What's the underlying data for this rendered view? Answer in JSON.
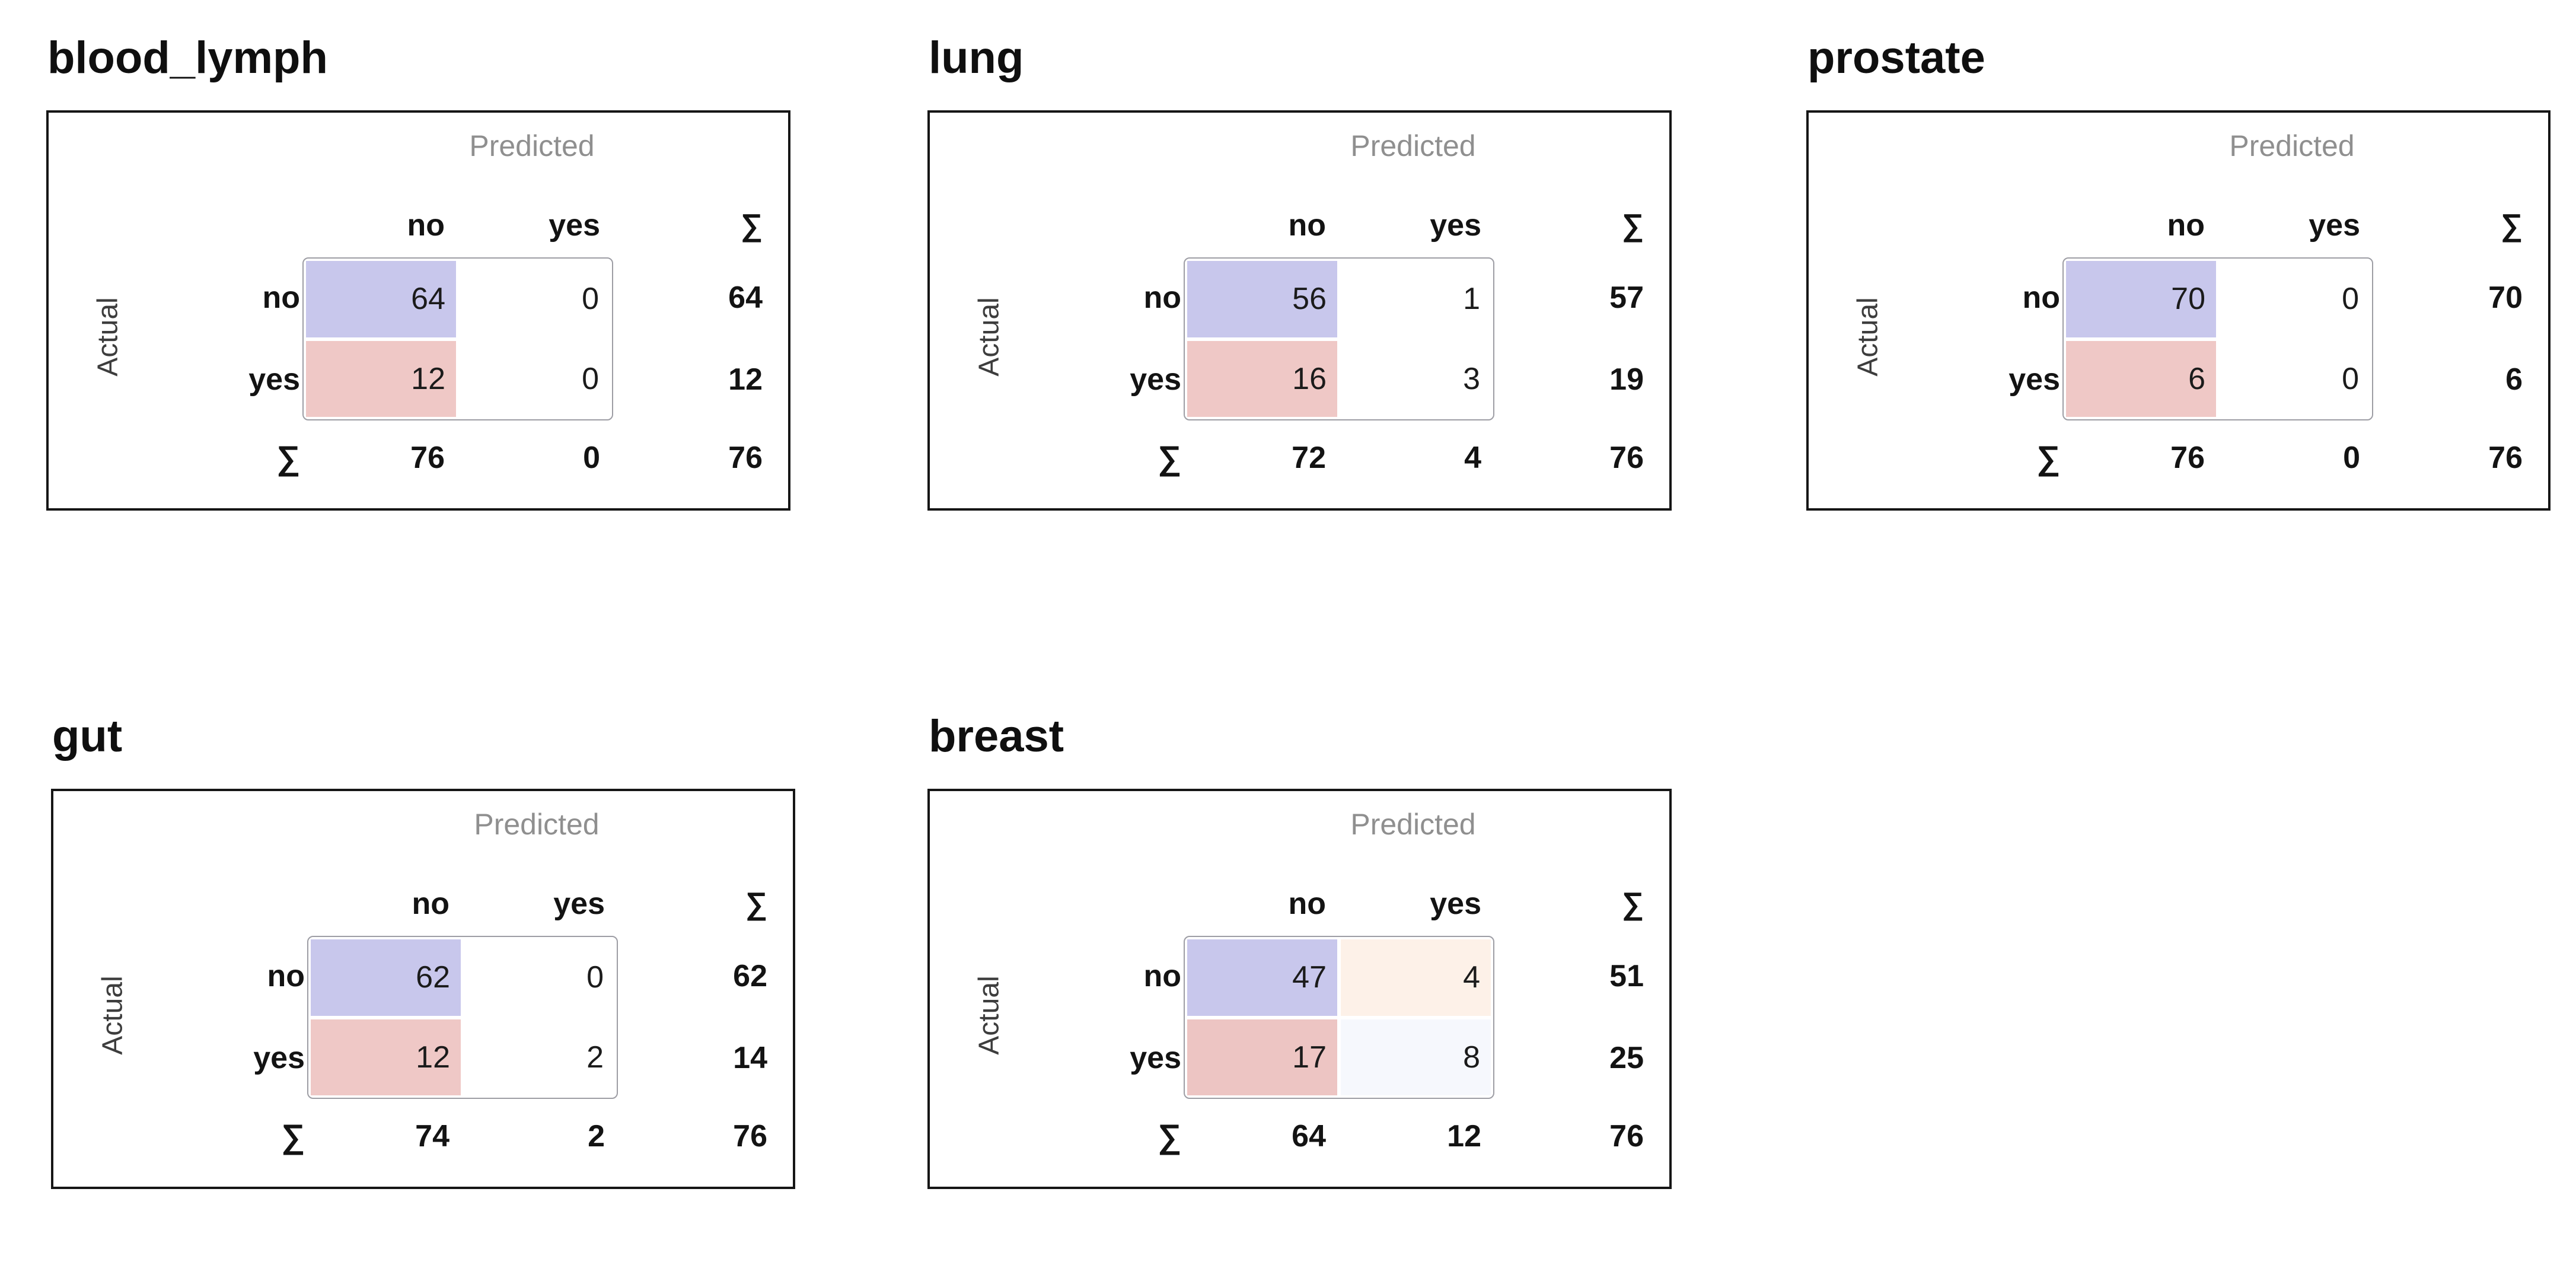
{
  "labels": {
    "predicted": "Predicted",
    "actual": "Actual",
    "sum": "∑",
    "category_no": "no",
    "category_yes": "yes"
  },
  "colors": {
    "cell_blue": "#c8c7ec",
    "cell_pink": "#efc8c6",
    "cell_white": "#ffffff",
    "cell_peach_light": "#fdf1e8",
    "cell_blue_light": "#f6f8fd",
    "predicted_label_gray": "#8f8f8f",
    "actual_label_gray": "#3d3d3d",
    "panel_border": "#161616",
    "matrix_border": "#9d9da4"
  },
  "panels": [
    {
      "title": "blood_lymph",
      "col_headers": [
        "no",
        "yes"
      ],
      "rows": [
        {
          "label": "no",
          "cells": [
            {
              "value": "64",
              "bg": "#c8c7ec"
            },
            {
              "value": "0",
              "bg": "#ffffff"
            }
          ],
          "sum": "64"
        },
        {
          "label": "yes",
          "cells": [
            {
              "value": "12",
              "bg": "#efc8c6"
            },
            {
              "value": "0",
              "bg": "#ffffff"
            }
          ],
          "sum": "12"
        }
      ],
      "col_sums": [
        "76",
        "0"
      ],
      "total": "76"
    },
    {
      "title": "lung",
      "col_headers": [
        "no",
        "yes"
      ],
      "rows": [
        {
          "label": "no",
          "cells": [
            {
              "value": "56",
              "bg": "#c8c7ec"
            },
            {
              "value": "1",
              "bg": "#ffffff"
            }
          ],
          "sum": "57"
        },
        {
          "label": "yes",
          "cells": [
            {
              "value": "16",
              "bg": "#efc8c6"
            },
            {
              "value": "3",
              "bg": "#ffffff"
            }
          ],
          "sum": "19"
        }
      ],
      "col_sums": [
        "72",
        "4"
      ],
      "total": "76"
    },
    {
      "title": "prostate",
      "col_headers": [
        "no",
        "yes"
      ],
      "rows": [
        {
          "label": "no",
          "cells": [
            {
              "value": "70",
              "bg": "#c8c7ec"
            },
            {
              "value": "0",
              "bg": "#ffffff"
            }
          ],
          "sum": "70"
        },
        {
          "label": "yes",
          "cells": [
            {
              "value": "6",
              "bg": "#efc8c6"
            },
            {
              "value": "0",
              "bg": "#ffffff"
            }
          ],
          "sum": "6"
        }
      ],
      "col_sums": [
        "76",
        "0"
      ],
      "total": "76"
    },
    {
      "title": "gut",
      "col_headers": [
        "no",
        "yes"
      ],
      "rows": [
        {
          "label": "no",
          "cells": [
            {
              "value": "62",
              "bg": "#c8c7ec"
            },
            {
              "value": "0",
              "bg": "#ffffff"
            }
          ],
          "sum": "62"
        },
        {
          "label": "yes",
          "cells": [
            {
              "value": "12",
              "bg": "#efc8c6"
            },
            {
              "value": "2",
              "bg": "#ffffff"
            }
          ],
          "sum": "14"
        }
      ],
      "col_sums": [
        "74",
        "2"
      ],
      "total": "76"
    },
    {
      "title": "breast",
      "col_headers": [
        "no",
        "yes"
      ],
      "rows": [
        {
          "label": "no",
          "cells": [
            {
              "value": "47",
              "bg": "#c8c7ec"
            },
            {
              "value": "4",
              "bg": "#fdf1e8"
            }
          ],
          "sum": "51"
        },
        {
          "label": "yes",
          "cells": [
            {
              "value": "17",
              "bg": "#edc5c3"
            },
            {
              "value": "8",
              "bg": "#f6f8fd"
            }
          ],
          "sum": "25"
        }
      ],
      "col_sums": [
        "64",
        "12"
      ],
      "total": "76"
    }
  ],
  "chart_data": [
    {
      "type": "heatmap",
      "title": "blood_lymph",
      "xlabel": "Predicted",
      "ylabel": "Actual",
      "x_categories": [
        "no",
        "yes"
      ],
      "y_categories": [
        "no",
        "yes"
      ],
      "matrix": [
        [
          64,
          0
        ],
        [
          12,
          0
        ]
      ],
      "row_sums": [
        64,
        12
      ],
      "col_sums": [
        76,
        0
      ],
      "total": 76
    },
    {
      "type": "heatmap",
      "title": "lung",
      "xlabel": "Predicted",
      "ylabel": "Actual",
      "x_categories": [
        "no",
        "yes"
      ],
      "y_categories": [
        "no",
        "yes"
      ],
      "matrix": [
        [
          56,
          1
        ],
        [
          16,
          3
        ]
      ],
      "row_sums": [
        57,
        19
      ],
      "col_sums": [
        72,
        4
      ],
      "total": 76
    },
    {
      "type": "heatmap",
      "title": "prostate",
      "xlabel": "Predicted",
      "ylabel": "Actual",
      "x_categories": [
        "no",
        "yes"
      ],
      "y_categories": [
        "no",
        "yes"
      ],
      "matrix": [
        [
          70,
          0
        ],
        [
          6,
          0
        ]
      ],
      "row_sums": [
        70,
        6
      ],
      "col_sums": [
        76,
        0
      ],
      "total": 76
    },
    {
      "type": "heatmap",
      "title": "gut",
      "xlabel": "Predicted",
      "ylabel": "Actual",
      "x_categories": [
        "no",
        "yes"
      ],
      "y_categories": [
        "no",
        "yes"
      ],
      "matrix": [
        [
          62,
          0
        ],
        [
          12,
          2
        ]
      ],
      "row_sums": [
        62,
        14
      ],
      "col_sums": [
        74,
        2
      ],
      "total": 76
    },
    {
      "type": "heatmap",
      "title": "breast",
      "xlabel": "Predicted",
      "ylabel": "Actual",
      "x_categories": [
        "no",
        "yes"
      ],
      "y_categories": [
        "no",
        "yes"
      ],
      "matrix": [
        [
          47,
          4
        ],
        [
          17,
          8
        ]
      ],
      "row_sums": [
        51,
        25
      ],
      "col_sums": [
        64,
        12
      ],
      "total": 76
    }
  ]
}
